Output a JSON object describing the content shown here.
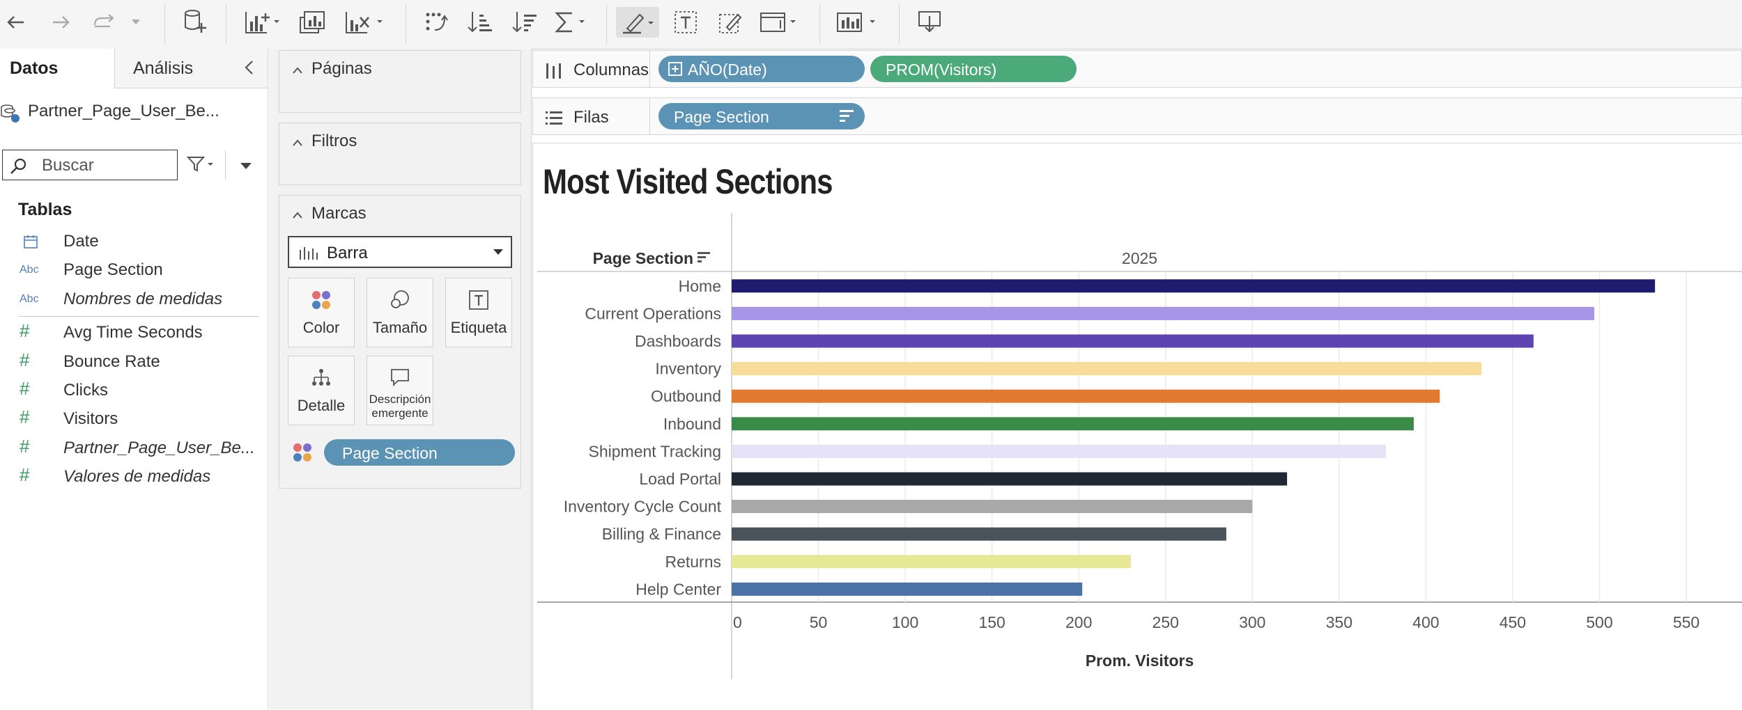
{
  "toolbar": {
    "buttons": [
      "back-icon",
      "forward-icon",
      "redo-icon",
      "dropdown-icon",
      "new-datasource-icon",
      "new-worksheet-icon",
      "duplicate-icon",
      "clear-icon",
      "swap-icon",
      "sort-ascending-icon",
      "sort-descending-icon",
      "totals-icon",
      "highlight-icon",
      "text-icon",
      "annotate-icon",
      "fit-icon",
      "show-me-icon",
      "present-icon"
    ]
  },
  "data_pane": {
    "tab_data": "Datos",
    "tab_analysis": "Análisis",
    "datasource": "Partner_Page_User_Be...",
    "search_placeholder": "Buscar",
    "tables_title": "Tablas",
    "fields": [
      {
        "label": "Date",
        "type": "date",
        "italic": false
      },
      {
        "label": "Page Section",
        "type": "Abc",
        "italic": false
      },
      {
        "label": "Nombres de medidas",
        "type": "Abc",
        "italic": true
      },
      {
        "label": "Avg Time Seconds",
        "type": "#",
        "italic": false
      },
      {
        "label": "Bounce Rate",
        "type": "#",
        "italic": false
      },
      {
        "label": "Clicks",
        "type": "#",
        "italic": false
      },
      {
        "label": "Visitors",
        "type": "#",
        "italic": false
      },
      {
        "label": "Partner_Page_User_Be...",
        "type": "#",
        "italic": true
      },
      {
        "label": "Valores de medidas",
        "type": "#",
        "italic": true
      }
    ]
  },
  "cards": {
    "pages": "Páginas",
    "filters": "Filtros",
    "marks": "Marcas",
    "mark_type": "Barra",
    "buttons": {
      "color": "Color",
      "size": "Tamaño",
      "label": "Etiqueta",
      "detail": "Detalle",
      "tooltip_line1": "Descripción",
      "tooltip_line2": "emergente"
    },
    "color_pill": "Page Section"
  },
  "shelves": {
    "columns_label": "Columnas",
    "columns_pills": [
      {
        "text": "AÑO(Date)",
        "color": "#5b93b5"
      },
      {
        "text": "PROM(Visitors)",
        "color": "#4caa7a"
      }
    ],
    "rows_label": "Filas",
    "rows_pills": [
      {
        "text": "Page Section",
        "color": "#5b93b5"
      }
    ]
  },
  "view": {
    "title": "Most Visited Sections"
  },
  "chart_data": {
    "type": "bar",
    "orientation": "horizontal",
    "column_header": "2025",
    "row_header": "Page Section",
    "xlabel": "Prom. Visitors",
    "xlim": [
      0,
      580
    ],
    "xticks": [
      0,
      50,
      100,
      150,
      200,
      250,
      300,
      350,
      400,
      450,
      500,
      550
    ],
    "grid": true,
    "categories": [
      "Home",
      "Current Operations",
      "Dashboards",
      "Inventory",
      "Outbound",
      "Inbound",
      "Shipment Tracking",
      "Load Portal",
      "Inventory Cycle Count",
      "Billing & Finance",
      "Returns",
      "Help Center"
    ],
    "values": [
      532,
      497,
      462,
      432,
      408,
      393,
      377,
      320,
      300,
      285,
      230,
      202
    ],
    "colors": [
      "#1f1c6e",
      "#a795e8",
      "#5e43b3",
      "#f7dc9a",
      "#e07a2e",
      "#3a8a48",
      "#e6e2f7",
      "#1f2933",
      "#a8a8a8",
      "#4a525c",
      "#e7e896",
      "#4b72a6"
    ]
  }
}
